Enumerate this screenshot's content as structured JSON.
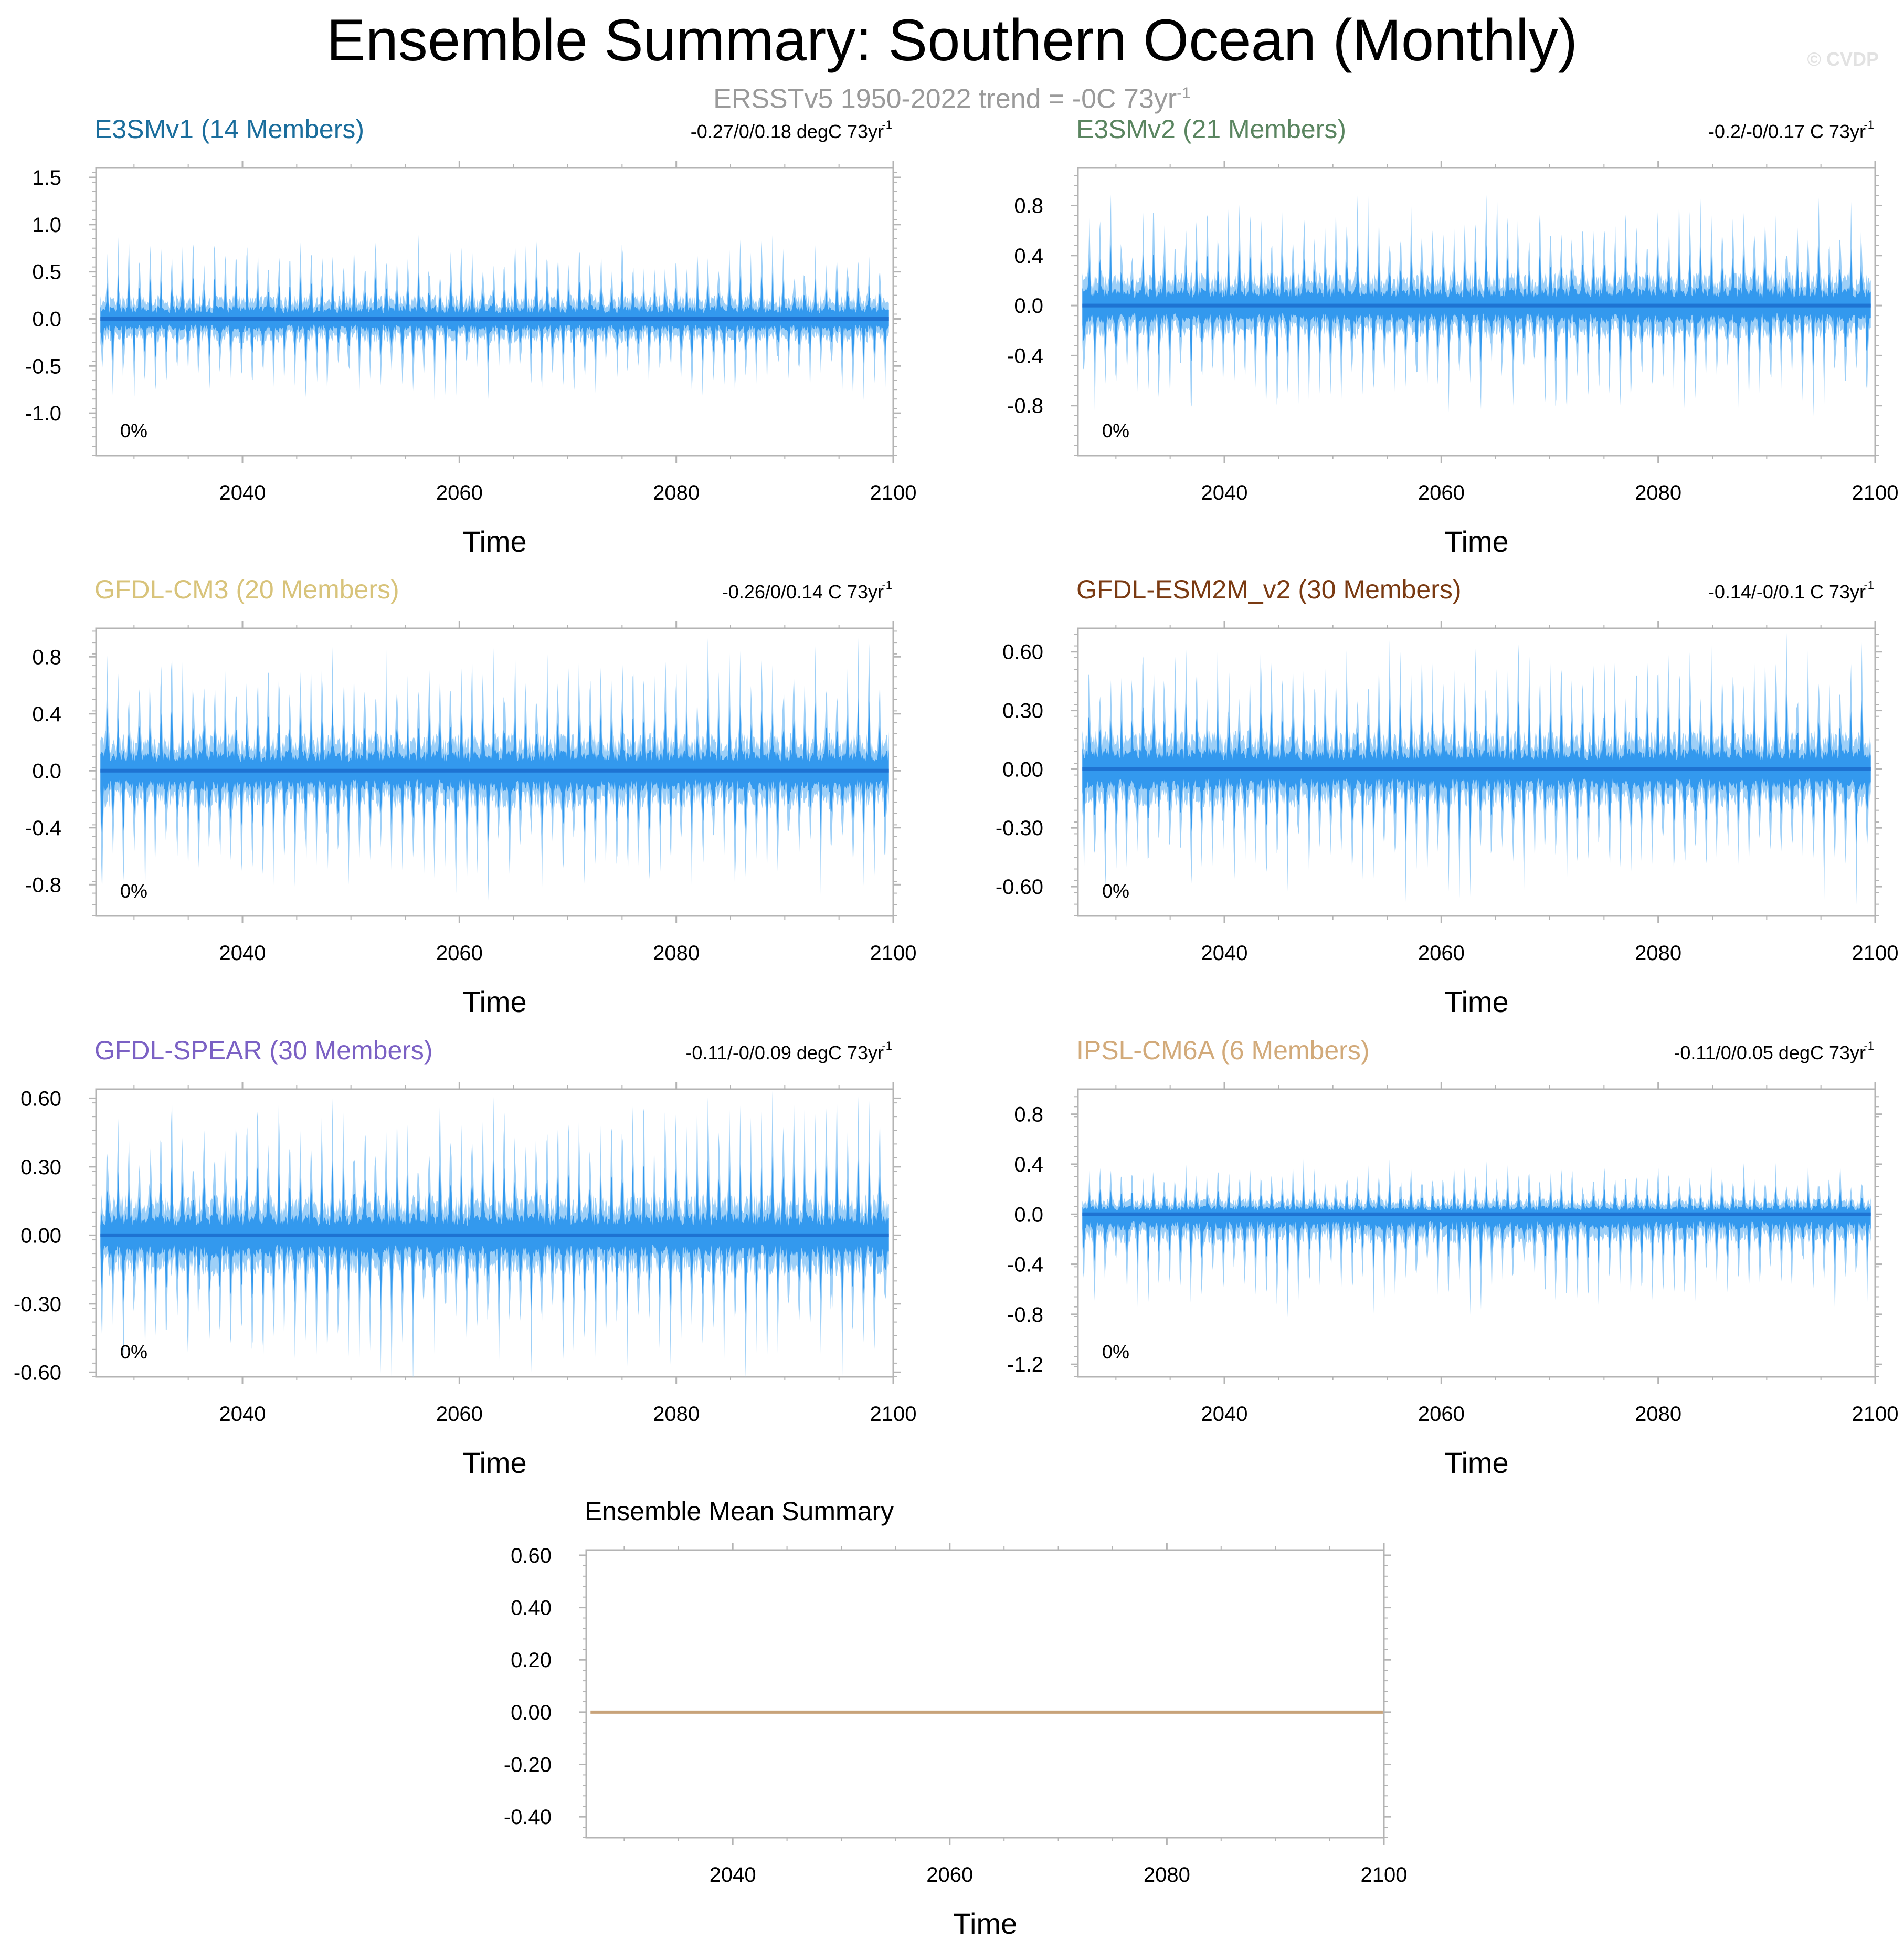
{
  "title": "Ensemble Summary: Southern Ocean (Monthly)",
  "subtitle": {
    "text": "ERSSTv5 1950-2022 trend = -0C 73yr",
    "superscript": "-1"
  },
  "watermark": "© CVDP",
  "colors": {
    "band_light": "#9dcff7",
    "band_dark": "#3399ee",
    "mean_line": "#1e73d2",
    "summary_line": "#c8a37a",
    "axis": "#b4b4b4"
  },
  "chart_data": [
    {
      "id": "e3smv1",
      "type": "area",
      "title": "E3SMv1 (14 Members)",
      "title_color": "#1a6d9c",
      "trend": "-0.27/0/0.18 degC 73yr",
      "trend_sup": "-1",
      "percent": "0%",
      "xlabel": "Time",
      "xlim": [
        2026.5,
        2100
      ],
      "xticks": [
        2040,
        2060,
        2080,
        2100
      ],
      "ylim": [
        -1.45,
        1.6
      ],
      "yticks": [
        "1.5",
        "1.0",
        "0.5",
        "0.0",
        "-0.5",
        "-1.0"
      ],
      "amp": 0.6,
      "pos_bias": 1.0,
      "seed": 11
    },
    {
      "id": "e3smv2",
      "type": "area",
      "title": "E3SMv2 (21 Members)",
      "title_color": "#5a8560",
      "trend": "-0.2/-0/0.17 C 73yr",
      "trend_sup": "-1",
      "percent": "0%",
      "xlabel": "Time",
      "xlim": [
        2026.5,
        2100
      ],
      "xticks": [
        2040,
        2060,
        2080,
        2100
      ],
      "ylim": [
        -1.2,
        1.1
      ],
      "yticks": [
        "0.8",
        "0.4",
        "0.0",
        "-0.4",
        "-0.8"
      ],
      "amp": 0.62,
      "pos_bias": 1.0,
      "seed": 23
    },
    {
      "id": "gfdl-cm3",
      "type": "area",
      "title": "GFDL-CM3 (20 Members)",
      "title_color": "#d8c37a",
      "trend": "-0.26/0/0.14 C 73yr",
      "trend_sup": "-1",
      "percent": "0%",
      "xlabel": "Time",
      "xlim": [
        2026.5,
        2100
      ],
      "xticks": [
        2040,
        2060,
        2080,
        2100
      ],
      "ylim": [
        -1.02,
        1.0
      ],
      "yticks": [
        "0.8",
        "0.4",
        "0.0",
        "-0.4",
        "-0.8"
      ],
      "amp": 0.62,
      "pos_bias": 1.0,
      "seed": 37
    },
    {
      "id": "gfdl-esm2m",
      "type": "area",
      "title": "GFDL-ESM2M_v2 (30 Members)",
      "title_color": "#7a3a12",
      "trend": "-0.14/-0/0.1 C 73yr",
      "trend_sup": "-1",
      "percent": "0%",
      "xlabel": "Time",
      "xlim": [
        2026.5,
        2100
      ],
      "xticks": [
        2040,
        2060,
        2080,
        2100
      ],
      "ylim": [
        -0.75,
        0.72
      ],
      "yticks": [
        "0.60",
        "0.30",
        "0.00",
        "-0.30",
        "-0.60"
      ],
      "amp": 0.46,
      "pos_bias": 1.0,
      "seed": 41
    },
    {
      "id": "gfdl-spear",
      "type": "area",
      "title": "GFDL-SPEAR (30 Members)",
      "title_color": "#7b61c4",
      "trend": "-0.11/-0/0.09 degC 73yr",
      "trend_sup": "-1",
      "percent": "0%",
      "xlabel": "Time",
      "xlim": [
        2026.5,
        2100
      ],
      "xticks": [
        2040,
        2060,
        2080,
        2100
      ],
      "ylim": [
        -0.62,
        0.64
      ],
      "yticks": [
        "0.60",
        "0.30",
        "0.00",
        "-0.30",
        "-0.60"
      ],
      "amp": 0.42,
      "pos_bias": 1.0,
      "seed": 53
    },
    {
      "id": "ipsl-cm6a",
      "type": "area",
      "title": "IPSL-CM6A (6 Members)",
      "title_color": "#d2aa7a",
      "trend": "-0.11/0/0.05 degC 73yr",
      "trend_sup": "-1",
      "percent": "0%",
      "xlabel": "Time",
      "xlim": [
        2026.5,
        2100
      ],
      "xticks": [
        2040,
        2060,
        2080,
        2100
      ],
      "ylim": [
        -1.3,
        1.0
      ],
      "yticks": [
        "0.8",
        "0.4",
        "0.0",
        "-0.4",
        "-0.8",
        "-1.2"
      ],
      "amp": 0.55,
      "pos_bias": 0.55,
      "seed": 67
    },
    {
      "id": "ensemble-mean",
      "type": "line",
      "title": "Ensemble Mean Summary",
      "title_color": "#000000",
      "trend": "",
      "trend_sup": "",
      "percent": "",
      "xlabel": "Time",
      "xlim": [
        2026.5,
        2100
      ],
      "xticks": [
        2040,
        2060,
        2080,
        2100
      ],
      "ylim": [
        -0.48,
        0.62
      ],
      "yticks": [
        "0.60",
        "0.40",
        "0.20",
        "0.00",
        "-0.20",
        "-0.40"
      ],
      "amp": 0,
      "pos_bias": 1.0,
      "seed": 0
    }
  ]
}
